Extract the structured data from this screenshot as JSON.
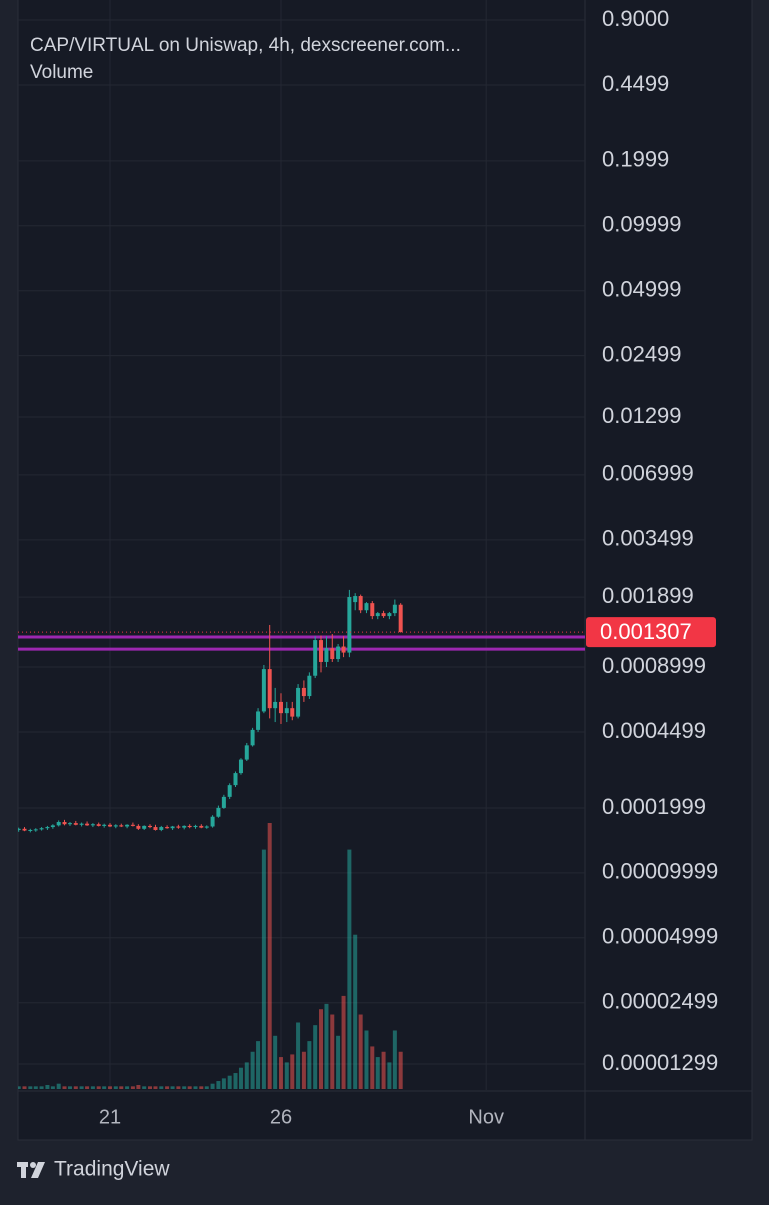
{
  "chart_data": {
    "type": "candlestick",
    "title": "CAP/VIRTUAL on Uniswap, 4h, dexscreener.com...",
    "subtitle": "Volume",
    "log_scale": true,
    "grid": true,
    "up_color": "#26a69a",
    "down_color": "#ef5350",
    "x": [
      18.33,
      18.5,
      18.67,
      18.83,
      19,
      19.17,
      19.33,
      19.5,
      19.67,
      19.83,
      20,
      20.17,
      20.33,
      20.5,
      20.67,
      20.83,
      21,
      21.17,
      21.33,
      21.5,
      21.67,
      21.83,
      22,
      22.17,
      22.33,
      22.5,
      22.67,
      22.83,
      23,
      23.17,
      23.33,
      23.5,
      23.67,
      23.83,
      24,
      24.17,
      24.33,
      24.5,
      24.67,
      24.83,
      25,
      25.17,
      25.33,
      25.5,
      25.67,
      25.83,
      26,
      26.17,
      26.33,
      26.5,
      26.67,
      26.83,
      27,
      27.17,
      27.33,
      27.5,
      27.67,
      27.83,
      28,
      28.17,
      28.33,
      28.5,
      28.67,
      28.83,
      29,
      29.17,
      29.33,
      29.5
    ],
    "open": [
      0.000158,
      0.00016,
      0.000157,
      0.000158,
      0.000159,
      0.000161,
      0.000163,
      0.000166,
      0.000172,
      0.000168,
      0.00017,
      0.000167,
      0.000169,
      0.000166,
      0.000168,
      0.000165,
      0.000167,
      0.000164,
      0.000166,
      0.000164,
      0.000167,
      0.000165,
      0.00016,
      0.000165,
      0.000163,
      0.000158,
      0.000163,
      0.000161,
      0.000164,
      0.000162,
      0.000165,
      0.000163,
      0.000165,
      0.000162,
      0.000164,
      0.000182,
      0.0002,
      0.000225,
      0.000255,
      0.00029,
      0.000335,
      0.00039,
      0.00046,
      0.00056,
      0.00088,
      0.00058,
      0.00062,
      0.00055,
      0.00058,
      0.00053,
      0.00072,
      0.00066,
      0.00082,
      0.0012,
      0.00095,
      0.0011,
      0.00098,
      0.00112,
      0.00105,
      0.0018,
      0.00192,
      0.00165,
      0.00178,
      0.00155,
      0.0016,
      0.00155,
      0.0016,
      0.00175
    ],
    "high": [
      0.000162,
      0.000163,
      0.00016,
      0.000161,
      0.000163,
      0.000165,
      0.000168,
      0.000175,
      0.000176,
      0.000172,
      0.000174,
      0.000171,
      0.000173,
      0.00017,
      0.000171,
      0.000169,
      0.00017,
      0.000168,
      0.000169,
      0.000168,
      0.000171,
      0.000168,
      0.000166,
      0.000168,
      0.000167,
      0.000165,
      0.000166,
      0.000165,
      0.000167,
      0.000166,
      0.000168,
      0.000167,
      0.000168,
      0.000166,
      0.000185,
      0.000205,
      0.00023,
      0.00026,
      0.000295,
      0.00034,
      0.0004,
      0.00047,
      0.00058,
      0.00092,
      0.00141,
      0.00072,
      0.00068,
      0.00062,
      0.00062,
      0.00075,
      0.00078,
      0.00085,
      0.00125,
      0.00126,
      0.00125,
      0.00128,
      0.00115,
      0.00125,
      0.00205,
      0.00198,
      0.00195,
      0.0018,
      0.00182,
      0.00162,
      0.00164,
      0.00162,
      0.00185,
      0.00178
    ],
    "low": [
      0.000155,
      0.000156,
      0.000154,
      0.000155,
      0.000157,
      0.000158,
      0.00016,
      0.000164,
      0.000166,
      0.000165,
      0.000166,
      0.000164,
      0.000165,
      0.000163,
      0.000164,
      0.000162,
      0.000163,
      0.000161,
      0.000163,
      0.000161,
      0.000164,
      0.000158,
      0.000158,
      0.000161,
      0.000157,
      0.000156,
      0.00016,
      0.000158,
      0.00016,
      0.000159,
      0.000161,
      0.00016,
      0.000161,
      0.00016,
      0.000162,
      0.00018,
      0.000198,
      0.00022,
      0.00025,
      0.000285,
      0.00033,
      0.000385,
      0.00045,
      0.00055,
      0.00052,
      0.0005,
      0.00049,
      0.0005,
      0.00051,
      0.00052,
      0.00062,
      0.00064,
      0.0008,
      0.00085,
      0.0009,
      0.00095,
      0.00095,
      0.001,
      0.001,
      0.00165,
      0.0016,
      0.0016,
      0.0015,
      0.0015,
      0.00152,
      0.0015,
      0.00155,
      0.0013
    ],
    "close": [
      0.00016,
      0.000157,
      0.000158,
      0.000159,
      0.000161,
      0.000163,
      0.000166,
      0.000172,
      0.000168,
      0.00017,
      0.000167,
      0.000169,
      0.000166,
      0.000168,
      0.000165,
      0.000167,
      0.000164,
      0.000166,
      0.000164,
      0.000167,
      0.000165,
      0.00016,
      0.000165,
      0.000163,
      0.000158,
      0.000163,
      0.000161,
      0.000164,
      0.000162,
      0.000165,
      0.000163,
      0.000165,
      0.000162,
      0.000164,
      0.000182,
      0.0002,
      0.000225,
      0.000255,
      0.00029,
      0.000335,
      0.00039,
      0.00046,
      0.00056,
      0.00088,
      0.00058,
      0.00062,
      0.00055,
      0.00058,
      0.00053,
      0.00072,
      0.00066,
      0.00082,
      0.0012,
      0.00095,
      0.0011,
      0.00098,
      0.00112,
      0.00105,
      0.0019,
      0.00192,
      0.00165,
      0.00178,
      0.00155,
      0.0016,
      0.00155,
      0.0016,
      0.00175,
      0.001307
    ],
    "volume": [
      1,
      1,
      1,
      1,
      1,
      1.5,
      1,
      2,
      1,
      1,
      1,
      1,
      1,
      1,
      1,
      1,
      1,
      1,
      1,
      1,
      1,
      1.5,
      1,
      1,
      1,
      1,
      1,
      1,
      1,
      1,
      1,
      1,
      1,
      1,
      2,
      3,
      4,
      5,
      6,
      8,
      10,
      14,
      18,
      90,
      100,
      20,
      12,
      10,
      13,
      25,
      14,
      18,
      24,
      30,
      32,
      28,
      20,
      35,
      90,
      58,
      28,
      22,
      16,
      12,
      14,
      10,
      22,
      14
    ],
    "ylim": [
      9.84e-06,
      1.023
    ],
    "yticks": [
      {
        "value": 0.9,
        "label": "0.9000"
      },
      0.4499,
      0.1999,
      0.09999,
      0.04999,
      0.02499,
      0.01299,
      0.006999,
      0.003499,
      0.001899,
      0.0008999,
      0.0004499,
      0.0001999,
      9.999e-05,
      4.999e-05,
      2.499e-05,
      1.299e-05
    ],
    "xlim": [
      18.31,
      34.89
    ],
    "xticks": [
      21,
      26,
      {
        "value": 32,
        "label": "Nov"
      }
    ],
    "hlines": [
      0.00124,
      0.00109
    ],
    "hline_color": "#9c27b0",
    "last_price": 0.001307,
    "last_price_color": "#f23645"
  },
  "footer": {
    "brand": "TradingView"
  }
}
